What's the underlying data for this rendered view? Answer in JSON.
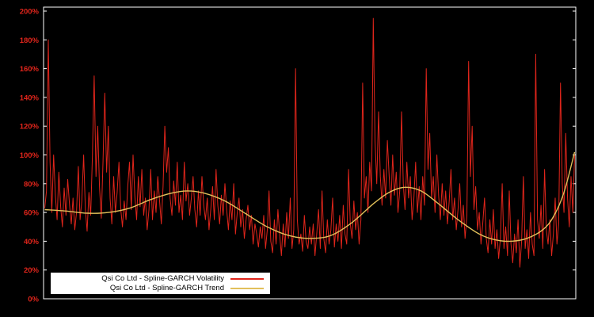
{
  "window": {
    "background_color": "#000000",
    "border_color": "#ffffff"
  },
  "chart_data": {
    "type": "line",
    "title": "",
    "xlabel": "",
    "ylabel": "",
    "x_range": [
      0,
      100
    ],
    "ylim": [
      0,
      200
    ],
    "grid": false,
    "legend_position": "bottom-left-inside",
    "axis_label_color": "#e0251b",
    "border_color": "#ffffff",
    "yticks": [
      {
        "value": 0,
        "label": "0%"
      },
      {
        "value": 20,
        "label": "20%"
      },
      {
        "value": 40,
        "label": "40%"
      },
      {
        "value": 60,
        "label": "60%"
      },
      {
        "value": 80,
        "label": "80%"
      },
      {
        "value": 100,
        "label": "100%"
      },
      {
        "value": 120,
        "label": "120%"
      },
      {
        "value": 140,
        "label": "140%"
      },
      {
        "value": 160,
        "label": "160%"
      },
      {
        "value": 180,
        "label": "180%"
      },
      {
        "value": 200,
        "label": "200%"
      }
    ],
    "series": [
      {
        "name": "Qsi Co Ltd - Spline-GARCH Volatility",
        "color": "#e0251b",
        "style": "jagged",
        "unit": "%",
        "values": [
          63,
          75,
          180,
          95,
          60,
          100,
          72,
          55,
          88,
          64,
          50,
          77,
          58,
          83,
          66,
          52,
          70,
          48,
          60,
          92,
          55,
          68,
          100,
          62,
          47,
          74,
          58,
          100,
          155,
          85,
          120,
          78,
          56,
          96,
          143,
          88,
          120,
          70,
          52,
          85,
          60,
          74,
          95,
          63,
          50,
          68,
          55,
          78,
          95,
          62,
          100,
          72,
          55,
          85,
          64,
          90,
          58,
          70,
          48,
          62,
          90,
          55,
          75,
          60,
          85,
          68,
          52,
          78,
          120,
          88,
          105,
          70,
          58,
          82,
          65,
          95,
          60,
          72,
          55,
          95,
          68,
          80,
          58,
          70,
          85,
          62,
          50,
          75,
          58,
          85,
          65,
          55,
          70,
          48,
          62,
          78,
          55,
          90,
          65,
          52,
          72,
          58,
          80,
          62,
          48,
          68,
          55,
          80,
          45,
          60,
          70,
          50,
          62,
          42,
          55,
          65,
          48,
          58,
          38,
          52,
          45,
          36,
          50,
          42,
          58,
          35,
          48,
          75,
          40,
          32,
          55,
          38,
          62,
          45,
          30,
          52,
          36,
          60,
          42,
          70,
          35,
          48,
          160,
          55,
          38,
          45,
          33,
          58,
          40,
          35,
          50,
          38,
          52,
          30,
          45,
          62,
          35,
          75,
          42,
          32,
          55,
          38,
          48,
          70,
          36,
          52,
          40,
          58,
          35,
          65,
          45,
          38,
          90,
          52,
          42,
          68,
          48,
          60,
          38,
          55,
          150,
          70,
          85,
          60,
          95,
          75,
          195,
          110,
          80,
          130,
          85,
          65,
          90,
          70,
          110,
          85,
          65,
          100,
          72,
          88,
          60,
          75,
          130,
          80,
          62,
          95,
          70,
          85,
          55,
          70,
          95,
          60,
          78,
          55,
          85,
          65,
          160,
          90,
          115,
          70,
          85,
          60,
          100,
          72,
          55,
          80,
          58,
          75,
          52,
          68,
          90,
          55,
          70,
          48,
          62,
          80,
          50,
          65,
          42,
          58,
          165,
          85,
          120,
          62,
          78,
          48,
          60,
          38,
          52,
          70,
          42,
          32,
          55,
          38,
          62,
          35,
          48,
          28,
          42,
          80,
          35,
          50,
          30,
          75,
          38,
          25,
          45,
          32,
          55,
          22,
          40,
          85,
          35,
          48,
          28,
          60,
          38,
          30,
          170,
          55,
          42,
          65,
          35,
          90,
          48,
          38,
          55,
          30,
          45,
          70,
          38,
          52,
          150,
          80,
          60,
          115,
          70,
          50,
          85,
          60,
          100
        ]
      },
      {
        "name": "Qsi Co Ltd - Spline-GARCH Trend",
        "color": "#e2c05a",
        "style": "smooth",
        "unit": "%",
        "control_points": [
          [
            0,
            62
          ],
          [
            4,
            61
          ],
          [
            8,
            59.5
          ],
          [
            12,
            60
          ],
          [
            16,
            63
          ],
          [
            20,
            69
          ],
          [
            24,
            73.5
          ],
          [
            27,
            75
          ],
          [
            30,
            73.5
          ],
          [
            34,
            68
          ],
          [
            38,
            59
          ],
          [
            42,
            50
          ],
          [
            46,
            44
          ],
          [
            50,
            42
          ],
          [
            54,
            44
          ],
          [
            58,
            53
          ],
          [
            62,
            66
          ],
          [
            65,
            74
          ],
          [
            68,
            77.5
          ],
          [
            71,
            75
          ],
          [
            74,
            67
          ],
          [
            78,
            55
          ],
          [
            82,
            45
          ],
          [
            85,
            41
          ],
          [
            88,
            40
          ],
          [
            91,
            42
          ],
          [
            94,
            48
          ],
          [
            96,
            57
          ],
          [
            98,
            74
          ],
          [
            100,
            102
          ]
        ]
      }
    ]
  }
}
